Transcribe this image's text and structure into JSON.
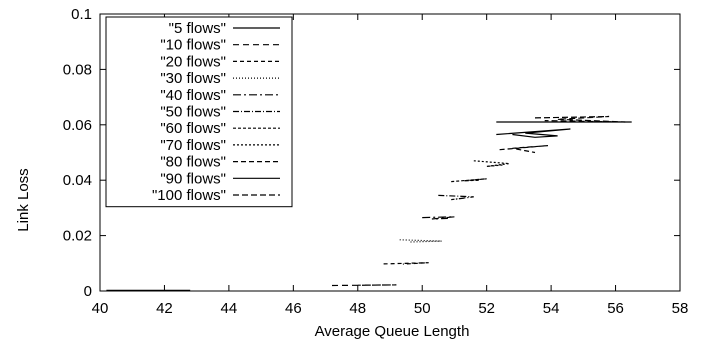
{
  "chart_data": {
    "type": "line",
    "title": "",
    "xlabel": "Average Queue Length",
    "ylabel": "Link Loss",
    "xlim": [
      40,
      58
    ],
    "ylim": [
      0,
      0.1
    ],
    "x_ticks": [
      "40",
      "42",
      "44",
      "46",
      "48",
      "50",
      "52",
      "54",
      "56",
      "58"
    ],
    "y_ticks": [
      "0",
      "0.02",
      "0.04",
      "0.06",
      "0.08",
      "0.1"
    ],
    "grid": false,
    "legend_position": "top-left",
    "series": [
      {
        "name": "\"5 flows\"",
        "dash": "",
        "segments": [
          [
            [
              40.2,
              0.0002
            ],
            [
              42.8,
              0.0002
            ]
          ]
        ]
      },
      {
        "name": "\"10 flows\"",
        "dash": "6,4",
        "segments": [
          [
            [
              47.2,
              0.002
            ],
            [
              49.2,
              0.0022
            ],
            [
              48.0,
              0.0021
            ]
          ]
        ]
      },
      {
        "name": "\"20 flows\"",
        "dash": "4,3",
        "segments": [
          [
            [
              48.8,
              0.0098
            ],
            [
              50.2,
              0.0102
            ],
            [
              49.4,
              0.0097
            ]
          ]
        ]
      },
      {
        "name": "\"30 flows\"",
        "dash": "1,2",
        "segments": [
          [
            [
              49.3,
              0.0185
            ],
            [
              50.6,
              0.018
            ],
            [
              49.6,
              0.0177
            ]
          ]
        ]
      },
      {
        "name": "\"40 flows\"",
        "dash": "8,3,2,3",
        "segments": [
          [
            [
              50.0,
              0.0265
            ],
            [
              51.0,
              0.0268
            ],
            [
              50.3,
              0.026
            ],
            [
              50.8,
              0.0262
            ]
          ]
        ]
      },
      {
        "name": "\"50 flows\"",
        "dash": "6,2,1,2",
        "segments": [
          [
            [
              50.5,
              0.0345
            ],
            [
              51.6,
              0.034
            ],
            [
              50.9,
              0.033
            ],
            [
              51.3,
              0.0335
            ]
          ]
        ]
      },
      {
        "name": "\"60 flows\"",
        "dash": "3,2",
        "segments": [
          [
            [
              50.9,
              0.0395
            ],
            [
              52.0,
              0.0405
            ],
            [
              51.3,
              0.0398
            ],
            [
              51.8,
              0.04
            ]
          ]
        ]
      },
      {
        "name": "\"70 flows\"",
        "dash": "2,2",
        "segments": [
          [
            [
              51.6,
              0.047
            ],
            [
              52.7,
              0.046
            ],
            [
              52.0,
              0.045
            ],
            [
              52.5,
              0.0455
            ]
          ]
        ]
      },
      {
        "name": "\"80 flows\"",
        "dash": "5,3",
        "segments": [
          [
            [
              52.4,
              0.051
            ],
            [
              53.9,
              0.0525
            ],
            [
              52.8,
              0.0515
            ],
            [
              53.5,
              0.05
            ]
          ]
        ]
      },
      {
        "name": "\"90 flows\"",
        "dash": "",
        "segments": [
          [
            [
              52.3,
              0.061
            ],
            [
              56.5,
              0.061
            ]
          ],
          [
            [
              52.3,
              0.0565
            ],
            [
              54.6,
              0.0585
            ],
            [
              53.2,
              0.057
            ],
            [
              54.2,
              0.056
            ],
            [
              53.5,
              0.0555
            ],
            [
              52.8,
              0.0565
            ]
          ]
        ]
      },
      {
        "name": "\"100 flows\"",
        "dash": "6,3",
        "segments": [
          [
            [
              53.5,
              0.0625
            ],
            [
              55.8,
              0.063
            ],
            [
              54.2,
              0.062
            ],
            [
              56.3,
              0.061
            ],
            [
              53.8,
              0.0615
            ]
          ]
        ]
      }
    ]
  }
}
